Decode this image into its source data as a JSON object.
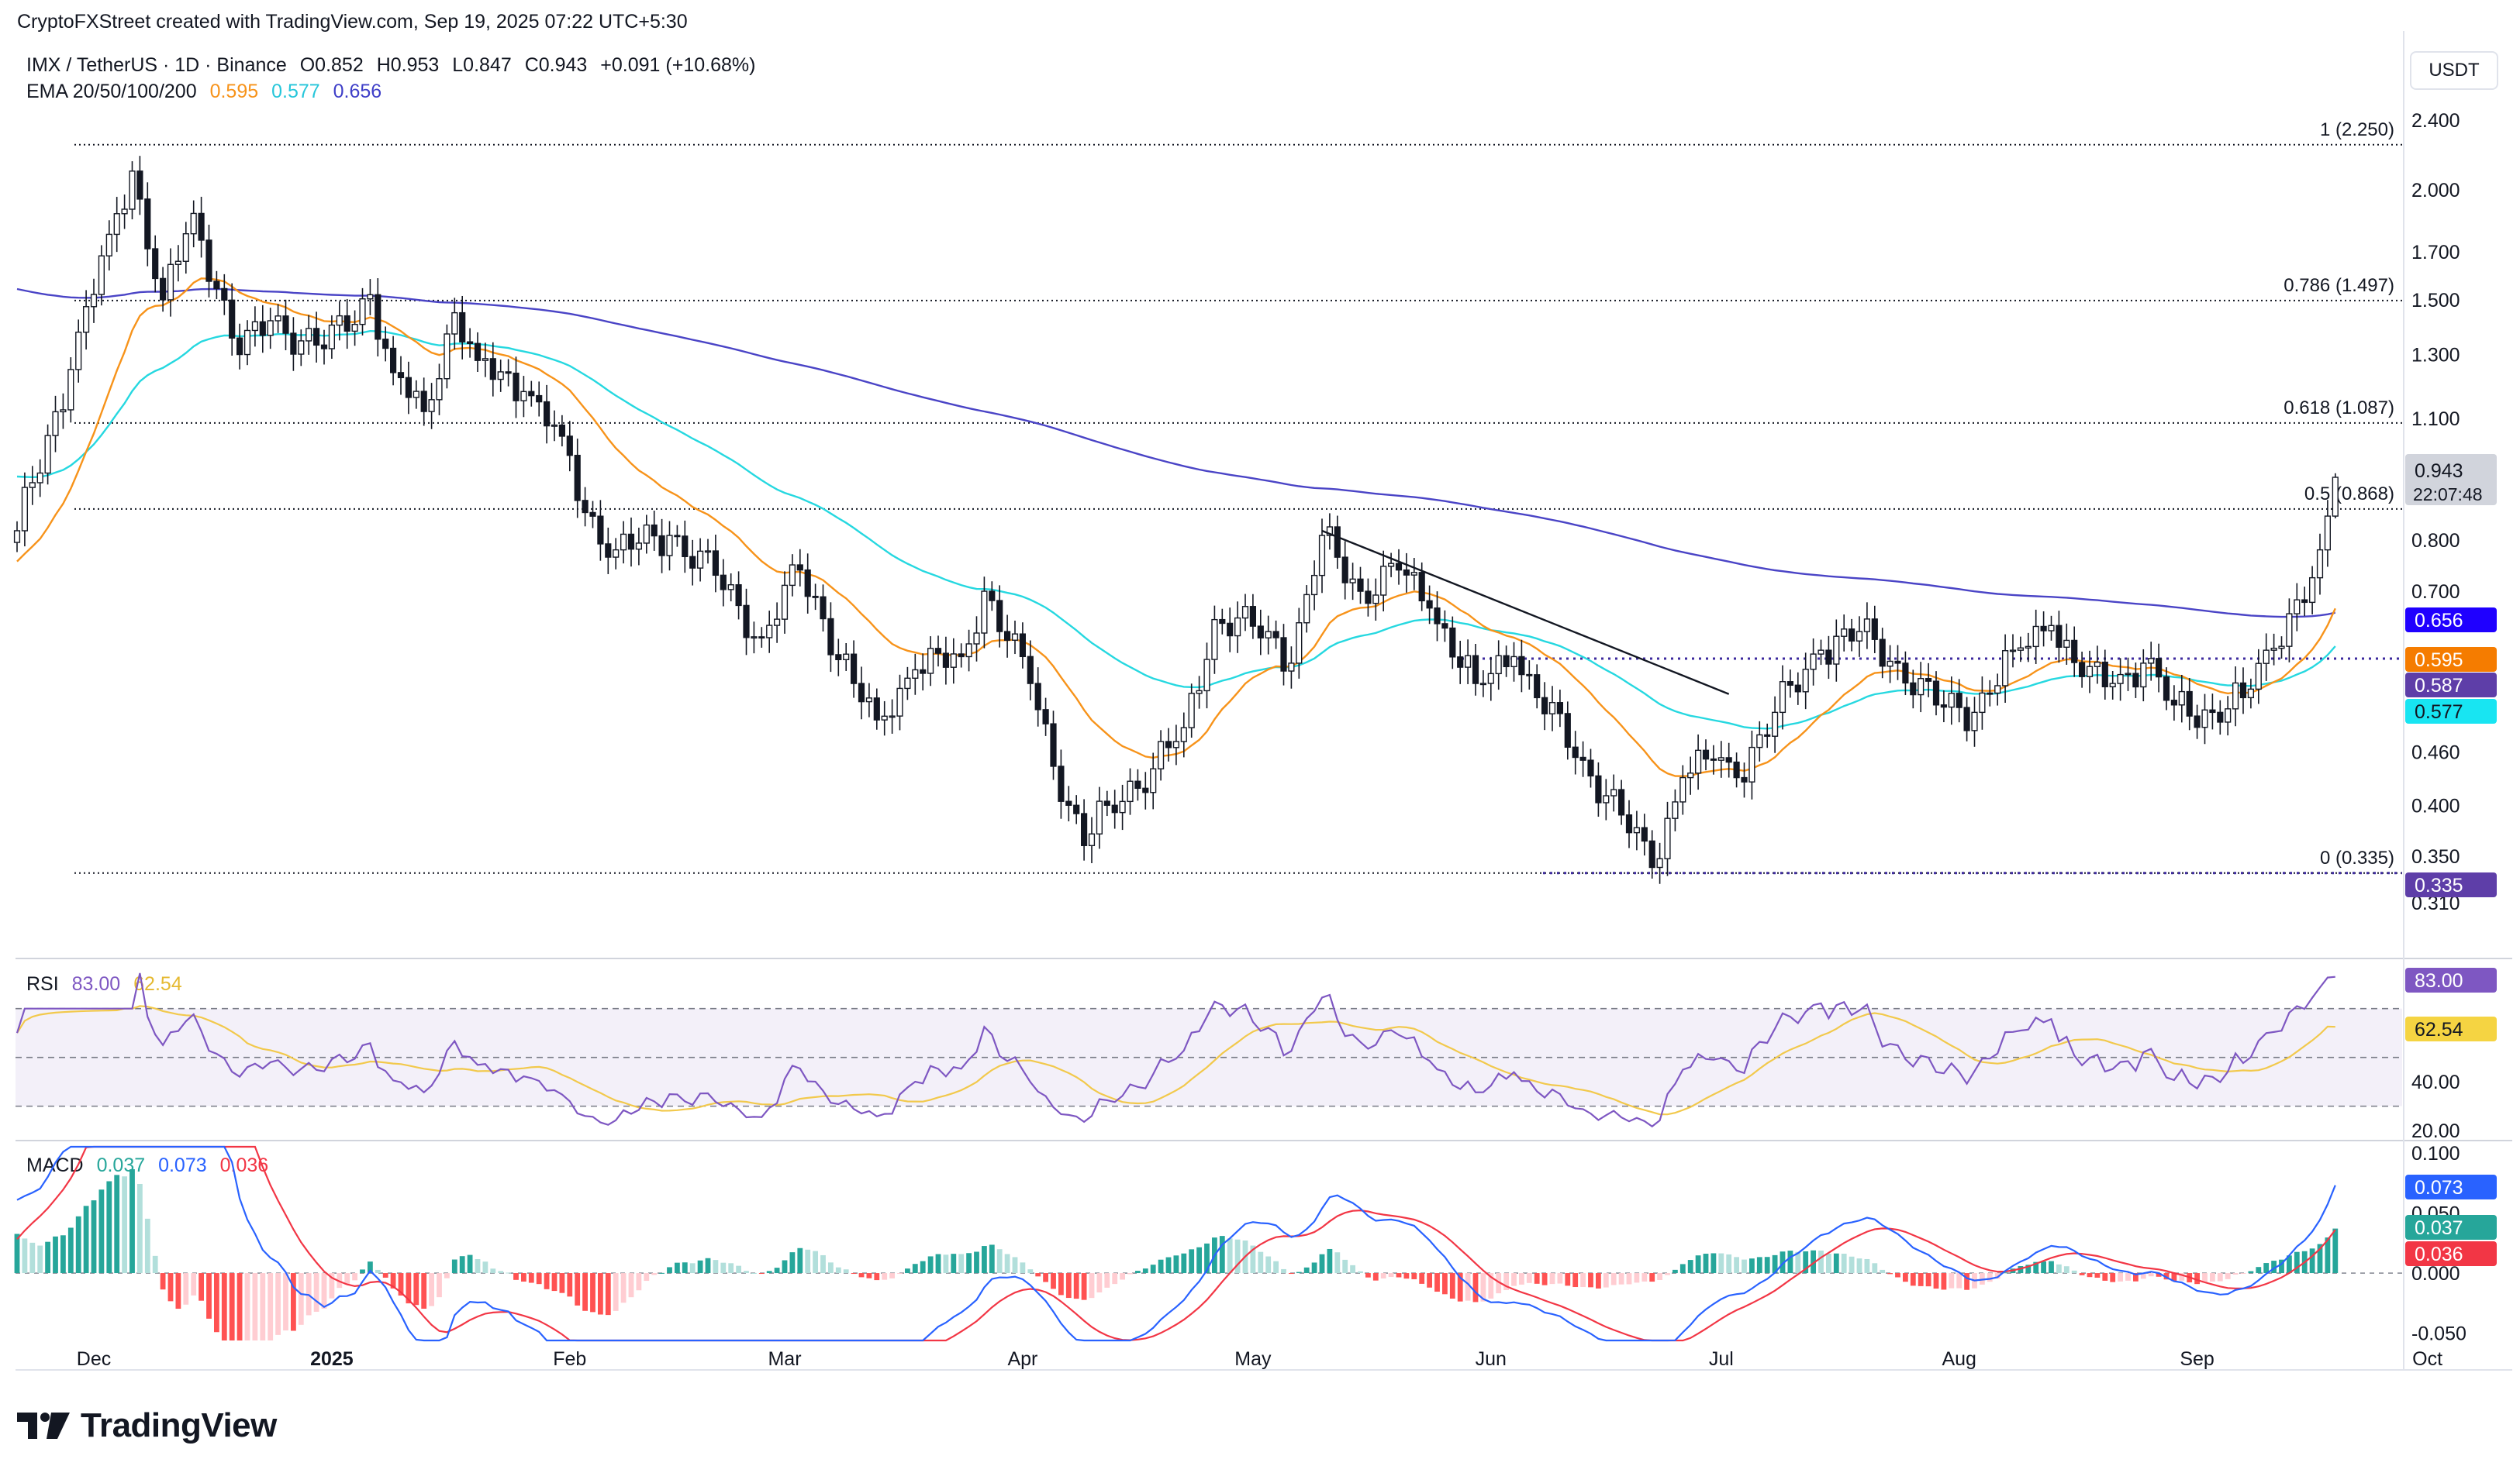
{
  "header": {
    "credit": "CryptoFXStreet created with TradingView.com, Sep 19, 2025 07:22 UTC+5:30"
  },
  "legend": {
    "symbol": "IMX / TetherUS · 1D · Binance",
    "open": "O0.852",
    "high": "H0.953",
    "low": "L0.847",
    "close": "C0.943",
    "change": "+0.091 (+10.68%)",
    "ema_label": "EMA 20/50/100/200",
    "ema20": "0.595",
    "ema50": "0.577",
    "ema200": "0.656"
  },
  "currency_button": "USDT",
  "colors": {
    "candle": "#131722",
    "ema20": "#f7931a",
    "ema50": "#26d8e0",
    "ema200": "#4a44c6",
    "rsi": "#7e57c2",
    "rsi_ma": "#f2c94c",
    "macd": "#2962ff",
    "macd_signal": "#f23645",
    "hist_pos_strong": "#26a69a",
    "hist_pos_weak": "#b2dfdb",
    "hist_neg_strong": "#ff5252",
    "hist_neg_weak": "#ffcdd2",
    "trendline": "#131722"
  },
  "rsi_legend": {
    "label": "RSI",
    "value": "83.00",
    "ma": "62.54"
  },
  "macd_legend": {
    "label": "MACD",
    "hist": "0.037",
    "macd": "0.073",
    "signal": "0.036"
  },
  "badges": {
    "last_price": "0.943",
    "countdown": "22:07:48",
    "ema200": "0.656",
    "ema20": "0.595",
    "support": "0.587",
    "ema50": "0.577",
    "fib_zero": "0.335",
    "rsi": "83.00",
    "rsi_ma": "62.54",
    "macd": "0.073",
    "hist": "0.037",
    "signal": "0.036"
  },
  "brand": "TradingView",
  "chart_data": [
    {
      "type": "candlestick",
      "title": "IMX / TetherUS · 1D · Binance",
      "scale": "log",
      "y_ticks": [
        "2.400",
        "2.000",
        "1.700",
        "1.500",
        "1.300",
        "1.100",
        "0.800",
        "0.700",
        "0.460",
        "0.400",
        "0.350",
        "0.310"
      ],
      "x_ticks": [
        "Dec",
        "2025",
        "Feb",
        "Mar",
        "Apr",
        "May",
        "Jun",
        "Jul",
        "Aug",
        "Sep",
        "Oct"
      ],
      "ylim": [
        0.29,
        2.55
      ],
      "fib_levels": [
        {
          "label": "1 (2.250)",
          "value": 2.25
        },
        {
          "label": "0.786 (1.497)",
          "value": 1.497
        },
        {
          "label": "0.618 (1.087)",
          "value": 1.087
        },
        {
          "label": "0.5 (0.868)",
          "value": 0.868
        },
        {
          "label": "0 (0.335)",
          "value": 0.335
        }
      ],
      "support_line": 0.587,
      "trendline": {
        "from": [
          "May 10",
          0.82
        ],
        "to": [
          "Jul 2",
          0.535
        ]
      },
      "anchors_close": [
        [
          "2024-11-21",
          0.82
        ],
        [
          "2024-11-28",
          1.25
        ],
        [
          "2024-12-03",
          1.78
        ],
        [
          "2024-12-06",
          2.1
        ],
        [
          "2024-12-10",
          1.5
        ],
        [
          "2024-12-14",
          1.88
        ],
        [
          "2024-12-20",
          1.3
        ],
        [
          "2024-12-24",
          1.42
        ],
        [
          "2024-12-31",
          1.32
        ],
        [
          "2025-01-06",
          1.52
        ],
        [
          "2025-01-09",
          1.24
        ],
        [
          "2025-01-13",
          1.12
        ],
        [
          "2025-01-17",
          1.45
        ],
        [
          "2025-01-20",
          1.28
        ],
        [
          "2025-01-26",
          1.18
        ],
        [
          "2025-01-31",
          1.05
        ],
        [
          "2025-02-03",
          0.86
        ],
        [
          "2025-02-07",
          0.78
        ],
        [
          "2025-02-14",
          0.81
        ],
        [
          "2025-02-20",
          0.73
        ],
        [
          "2025-02-26",
          0.62
        ],
        [
          "2025-03-03",
          0.74
        ],
        [
          "2025-03-10",
          0.55
        ],
        [
          "2025-03-13",
          0.5
        ],
        [
          "2025-03-18",
          0.57
        ],
        [
          "2025-03-24",
          0.59
        ],
        [
          "2025-03-27",
          0.7
        ],
        [
          "2025-04-02",
          0.55
        ],
        [
          "2025-04-07",
          0.4
        ],
        [
          "2025-04-09",
          0.36
        ],
        [
          "2025-04-12",
          0.4
        ],
        [
          "2025-04-18",
          0.44
        ],
        [
          "2025-04-22",
          0.49
        ],
        [
          "2025-04-26",
          0.65
        ],
        [
          "2025-05-03",
          0.63
        ],
        [
          "2025-05-06",
          0.58
        ],
        [
          "2025-05-10",
          0.81
        ],
        [
          "2025-05-15",
          0.7
        ],
        [
          "2025-05-20",
          0.74
        ],
        [
          "2025-05-24",
          0.67
        ],
        [
          "2025-05-30",
          0.55
        ],
        [
          "2025-06-04",
          0.59
        ],
        [
          "2025-06-07",
          0.53
        ],
        [
          "2025-06-13",
          0.45
        ],
        [
          "2025-06-18",
          0.39
        ],
        [
          "2025-06-22",
          0.34
        ],
        [
          "2025-06-26",
          0.43
        ],
        [
          "2025-06-30",
          0.45
        ],
        [
          "2025-07-03",
          0.43
        ],
        [
          "2025-07-08",
          0.51
        ],
        [
          "2025-07-14",
          0.6
        ],
        [
          "2025-07-19",
          0.63
        ],
        [
          "2025-07-24",
          0.58
        ],
        [
          "2025-07-29",
          0.52
        ],
        [
          "2025-08-03",
          0.51
        ],
        [
          "2025-08-08",
          0.6
        ],
        [
          "2025-08-13",
          0.64
        ],
        [
          "2025-08-17",
          0.56
        ],
        [
          "2025-08-21",
          0.55
        ],
        [
          "2025-08-25",
          0.58
        ],
        [
          "2025-08-29",
          0.52
        ],
        [
          "2025-09-03",
          0.51
        ],
        [
          "2025-09-07",
          0.53
        ],
        [
          "2025-09-10",
          0.6
        ],
        [
          "2025-09-13",
          0.66
        ],
        [
          "2025-09-15",
          0.68
        ],
        [
          "2025-09-17",
          0.78
        ],
        [
          "2025-09-18",
          0.852
        ],
        [
          "2025-09-19",
          0.943
        ]
      ],
      "last_candle": {
        "open": 0.852,
        "high": 0.953,
        "low": 0.847,
        "close": 0.943
      },
      "series": [
        {
          "name": "EMA 20",
          "last": 0.595
        },
        {
          "name": "EMA 50",
          "last": 0.577
        },
        {
          "name": "EMA 200",
          "last": 0.656
        }
      ]
    },
    {
      "type": "line",
      "title": "RSI",
      "y_ticks": [
        "40.00",
        "20.00"
      ],
      "levels": [
        70,
        50,
        30
      ],
      "ylim": [
        14,
        88
      ],
      "series": [
        {
          "name": "RSI",
          "last": 83.0
        },
        {
          "name": "RSI MA",
          "last": 62.54
        }
      ]
    },
    {
      "type": "bar",
      "title": "MACD",
      "y_ticks": [
        "0.100",
        "0.050",
        "0.000",
        "-0.050"
      ],
      "ylim": [
        -0.056,
        0.105
      ],
      "series": [
        {
          "name": "Histogram",
          "last": 0.037
        },
        {
          "name": "MACD",
          "last": 0.073
        },
        {
          "name": "Signal",
          "last": 0.036
        }
      ]
    }
  ]
}
